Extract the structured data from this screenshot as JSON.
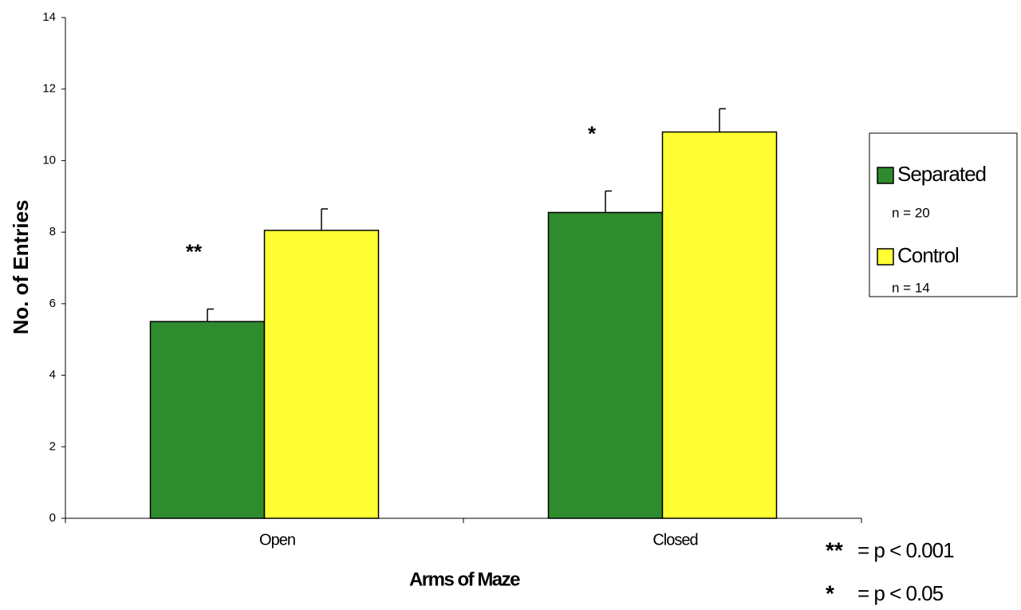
{
  "chart_data": {
    "type": "bar",
    "y_label": "No. of Entries",
    "x_label": "Arms of Maze",
    "categories": [
      "Open",
      "Closed"
    ],
    "series": [
      {
        "name": "Separated",
        "sample_size": "n = 20",
        "color": "#2e8b2e",
        "values": [
          5.5,
          8.55
        ],
        "errors": [
          0.35,
          0.6
        ]
      },
      {
        "name": "Control",
        "sample_size": "n = 14",
        "color": "#ffff33",
        "values": [
          8.05,
          10.8
        ],
        "errors": [
          0.6,
          0.65
        ]
      }
    ],
    "annotations": [
      "**",
      "*"
    ],
    "footnotes": [
      {
        "symbol": "**",
        "text": "= p < 0.001"
      },
      {
        "symbol": "*",
        "text": "= p < 0.05"
      }
    ],
    "ylim": [
      0,
      14
    ],
    "yticks": [
      0,
      2,
      4,
      6,
      8,
      10,
      12,
      14
    ],
    "grid": false,
    "legend": "right"
  }
}
